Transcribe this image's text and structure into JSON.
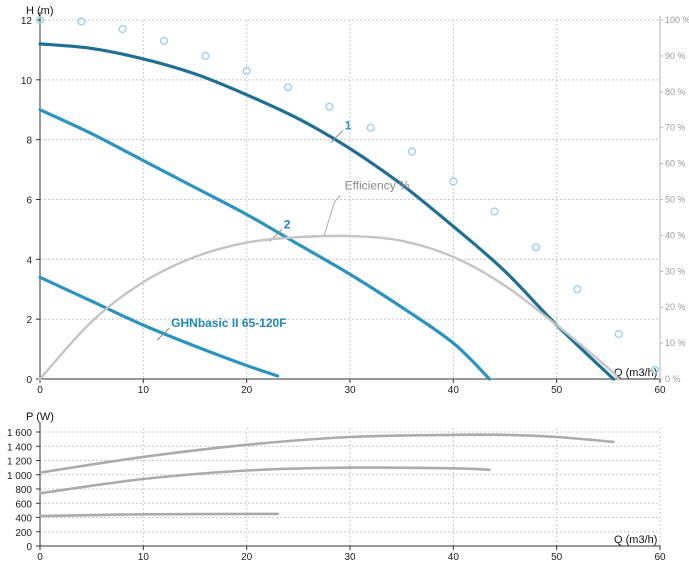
{
  "colors": {
    "curve": "#1f6f95",
    "curve_mid": "#2a93bf",
    "efficiency": "#c4c4c4",
    "dots": "#9fd0ea",
    "power": "#ababab",
    "grid": "#c8c8c8",
    "axis": "#333333",
    "label": "#1f8ab8"
  },
  "chart_data": [
    {
      "type": "line",
      "title": "",
      "xlabel": "Q (m3/h)",
      "ylabel": "H (m)",
      "y2label": "",
      "xlim": [
        0,
        60
      ],
      "ylim": [
        0,
        12
      ],
      "y2lim": [
        0,
        100
      ],
      "xticks": [
        0,
        10,
        20,
        30,
        40,
        50,
        60
      ],
      "yticks": [
        0,
        2,
        4,
        6,
        8,
        10,
        12
      ],
      "y2ticks": [
        0,
        10,
        20,
        30,
        40,
        50,
        60,
        70,
        80,
        90,
        100
      ],
      "x_tick_labels": [
        "0",
        "10",
        "20",
        "30",
        "40",
        "50",
        "60"
      ],
      "y_tick_labels": [
        "0",
        "2",
        "4",
        "6",
        "8",
        "10",
        "12"
      ],
      "y2_tick_labels": [
        "0 %",
        "10 %",
        "20 %",
        "30 %",
        "40 %",
        "50 %",
        "60 %",
        "70 %",
        "80 %",
        "90 %",
        "100 %"
      ],
      "grid": true,
      "series": [
        {
          "name": "1",
          "label_point": [
            29.3,
            8.3
          ],
          "points": [
            [
              0,
              11.2
            ],
            [
              5,
              11.05
            ],
            [
              10,
              10.7
            ],
            [
              15,
              10.2
            ],
            [
              20,
              9.5
            ],
            [
              25,
              8.7
            ],
            [
              30,
              7.7
            ],
            [
              35,
              6.5
            ],
            [
              40,
              5.1
            ],
            [
              45,
              3.6
            ],
            [
              50,
              1.8
            ],
            [
              55.5,
              0
            ]
          ]
        },
        {
          "name": "2",
          "label_point": [
            23.4,
            5.0
          ],
          "points": [
            [
              0,
              9.0
            ],
            [
              5,
              8.2
            ],
            [
              10,
              7.3
            ],
            [
              15,
              6.4
            ],
            [
              20,
              5.5
            ],
            [
              25,
              4.5
            ],
            [
              30,
              3.5
            ],
            [
              35,
              2.4
            ],
            [
              40,
              1.2
            ],
            [
              43.5,
              0
            ]
          ]
        },
        {
          "name": "GHNbasic II 65-120F",
          "label_point": [
            12.5,
            1.7
          ],
          "points": [
            [
              0,
              3.4
            ],
            [
              5,
              2.6
            ],
            [
              10,
              1.8
            ],
            [
              15,
              1.1
            ],
            [
              20,
              0.45
            ],
            [
              23,
              0.1
            ]
          ]
        },
        {
          "name": "Efficiency %",
          "axis": "y2",
          "label_point": [
            28.7,
            6.2
          ],
          "points": [
            [
              0,
              0
            ],
            [
              5,
              16
            ],
            [
              10,
              27
            ],
            [
              15,
              34
            ],
            [
              20,
              38
            ],
            [
              25,
              39.5
            ],
            [
              30,
              39.8
            ],
            [
              35,
              38.5
            ],
            [
              40,
              34
            ],
            [
              45,
              26
            ],
            [
              50,
              15
            ],
            [
              55,
              3
            ],
            [
              56,
              0
            ]
          ]
        },
        {
          "name": "",
          "style": "dots",
          "points": [
            [
              0,
              12
            ],
            [
              4,
              11.95
            ],
            [
              8,
              11.7
            ],
            [
              12,
              11.3
            ],
            [
              16,
              10.8
            ],
            [
              20,
              10.3
            ],
            [
              24,
              9.75
            ],
            [
              28,
              9.1
            ],
            [
              32,
              8.4
            ],
            [
              36,
              7.6
            ],
            [
              40,
              6.6
            ],
            [
              44,
              5.6
            ],
            [
              48,
              4.4
            ],
            [
              52,
              3.0
            ],
            [
              56,
              1.5
            ],
            [
              59.5,
              0.3
            ]
          ]
        }
      ]
    },
    {
      "type": "line",
      "title": "",
      "xlabel": "Q (m3/h)",
      "ylabel": "P (W)",
      "xlim": [
        0,
        60
      ],
      "ylim": [
        0,
        1600
      ],
      "xticks": [
        0,
        10,
        20,
        30,
        40,
        50,
        60
      ],
      "yticks": [
        0,
        200,
        400,
        600,
        800,
        1000,
        1200,
        1400,
        1600
      ],
      "x_tick_labels": [
        "0",
        "10",
        "20",
        "30",
        "40",
        "50",
        "60"
      ],
      "y_tick_labels": [
        "0",
        "200",
        "400",
        "600",
        "800",
        "1 000",
        "1 200",
        "1 400",
        "1 600"
      ],
      "grid": true,
      "series": [
        {
          "name": "",
          "points": [
            [
              0,
              1030
            ],
            [
              10,
              1250
            ],
            [
              20,
              1420
            ],
            [
              30,
              1530
            ],
            [
              40,
              1560
            ],
            [
              45,
              1560
            ],
            [
              50,
              1530
            ],
            [
              55.5,
              1460
            ]
          ]
        },
        {
          "name": "",
          "points": [
            [
              0,
              740
            ],
            [
              10,
              940
            ],
            [
              20,
              1060
            ],
            [
              30,
              1100
            ],
            [
              40,
              1090
            ],
            [
              43.5,
              1070
            ]
          ]
        },
        {
          "name": "",
          "points": [
            [
              0,
              420
            ],
            [
              10,
              445
            ],
            [
              23,
              450
            ]
          ]
        }
      ]
    }
  ]
}
